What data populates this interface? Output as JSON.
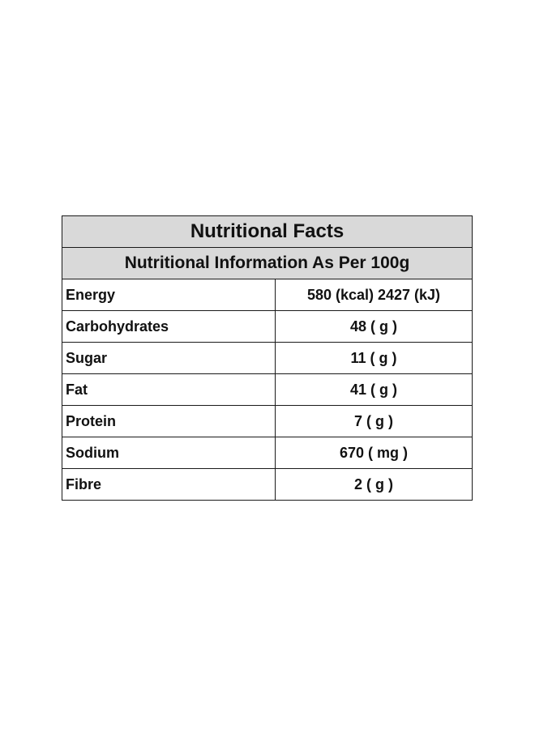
{
  "table": {
    "title": "Nutritional Facts",
    "subtitle": "Nutritional Information As Per 100g",
    "rows": [
      {
        "name": "Energy",
        "value": "580 (kcal) 2427 (kJ)"
      },
      {
        "name": "Carbohydrates",
        "value": "48 ( g )"
      },
      {
        "name": "Sugar",
        "value": "11 ( g )"
      },
      {
        "name": "Fat",
        "value": "41 ( g )"
      },
      {
        "name": "Protein",
        "value": "7 ( g )"
      },
      {
        "name": "Sodium",
        "value": "670 ( mg )"
      },
      {
        "name": "Fibre",
        "value": "2 ( g )"
      }
    ]
  },
  "colors": {
    "header_background": "#d9d9d9",
    "border": "#1a1a1a",
    "text": "#111111",
    "page_background": "#ffffff"
  }
}
